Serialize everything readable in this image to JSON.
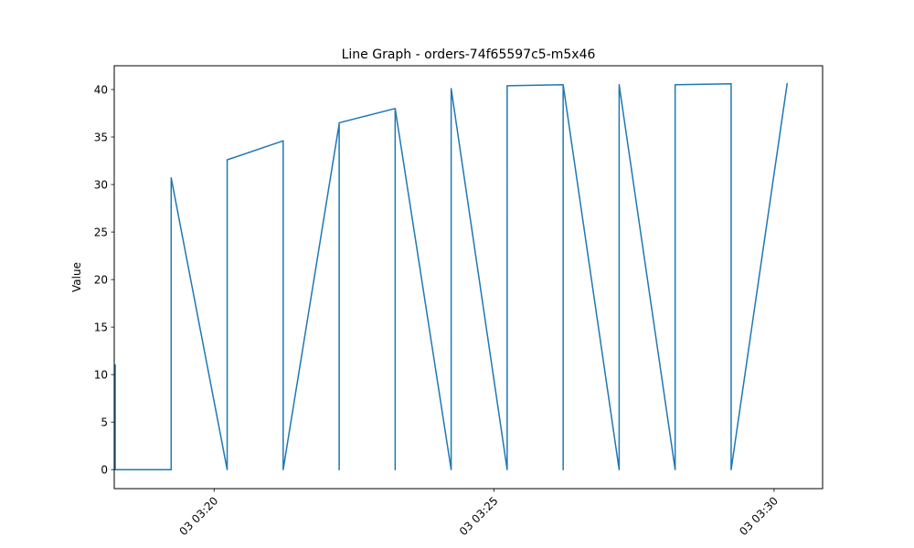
{
  "chart_data": {
    "type": "line",
    "title": "Line Graph - orders-74f65597c5-m5x46",
    "xlabel": "",
    "ylabel": "Value",
    "x_tick_labels": [
      "03 03:20",
      "03 03:25",
      "03 03:30"
    ],
    "x_tick_minutes": [
      20,
      25,
      30
    ],
    "xlim": [
      "03:18:13",
      "03:30:52"
    ],
    "y_ticks": [
      0,
      5,
      10,
      15,
      20,
      25,
      30,
      35,
      40
    ],
    "ylim": [
      -2.0,
      42.5
    ],
    "grid": false,
    "series": [
      {
        "color": "#1f77b4",
        "points": [
          {
            "t": "03:18:14",
            "v": 11.0
          },
          {
            "t": "03:18:14",
            "v": 10.0
          },
          {
            "t": "03:18:14",
            "v": 0.0
          },
          {
            "t": "03:19:14",
            "v": 0.0
          },
          {
            "t": "03:19:14",
            "v": 30.7
          },
          {
            "t": "03:20:14",
            "v": 0.0
          },
          {
            "t": "03:20:14",
            "v": 32.6
          },
          {
            "t": "03:21:14",
            "v": 34.6
          },
          {
            "t": "03:21:14",
            "v": 0.0
          },
          {
            "t": "03:22:14",
            "v": 36.4
          },
          {
            "t": "03:22:14",
            "v": 0.0
          },
          {
            "t": "03:22:14",
            "v": 36.5
          },
          {
            "t": "03:23:14",
            "v": 38.0
          },
          {
            "t": "03:23:14",
            "v": 0.0
          },
          {
            "t": "03:23:14",
            "v": 38.0
          },
          {
            "t": "03:24:14",
            "v": 0.0
          },
          {
            "t": "03:24:14",
            "v": 40.1
          },
          {
            "t": "03:25:14",
            "v": 0.0
          },
          {
            "t": "03:25:14",
            "v": 40.4
          },
          {
            "t": "03:26:14",
            "v": 40.5
          },
          {
            "t": "03:26:14",
            "v": 0.0
          },
          {
            "t": "03:26:14",
            "v": 40.5
          },
          {
            "t": "03:27:14",
            "v": 0.0
          },
          {
            "t": "03:27:14",
            "v": 40.5
          },
          {
            "t": "03:28:14",
            "v": 0.0
          },
          {
            "t": "03:28:14",
            "v": 40.5
          },
          {
            "t": "03:29:14",
            "v": 40.6
          },
          {
            "t": "03:29:14",
            "v": 0.0
          },
          {
            "t": "03:30:14",
            "v": 40.6
          }
        ]
      }
    ]
  }
}
